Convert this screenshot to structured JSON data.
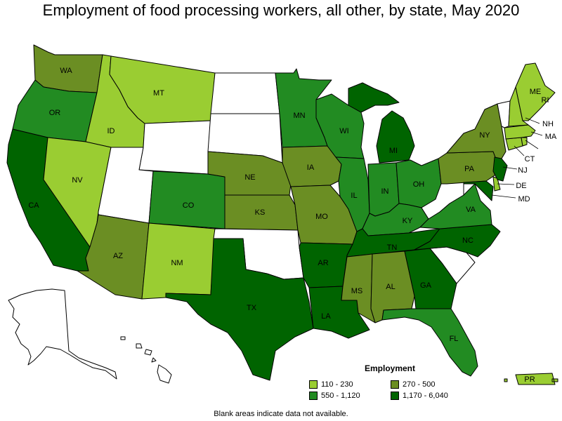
{
  "title": "Employment of food processing workers, all other, by state, May 2020",
  "footnote": "Blank areas indicate data not available.",
  "legend": {
    "title": "Employment",
    "items": [
      {
        "label": "110 - 230",
        "color": "#9acd32"
      },
      {
        "label": "270 - 500",
        "color": "#6b8e23"
      },
      {
        "label": "550 - 1,120",
        "color": "#228b22"
      },
      {
        "label": "1,170 - 6,040",
        "color": "#006400"
      }
    ]
  },
  "colors": {
    "no_data": "#ffffff",
    "c1": "#9acd32",
    "c2": "#6b8e23",
    "c3": "#228b22",
    "c4": "#006400"
  },
  "states": {
    "WA": {
      "label": "WA",
      "class": "c2"
    },
    "OR": {
      "label": "OR",
      "class": "c3"
    },
    "CA": {
      "label": "CA",
      "class": "c4"
    },
    "ID": {
      "label": "ID",
      "class": "c1"
    },
    "NV": {
      "label": "NV",
      "class": "c1"
    },
    "MT": {
      "label": "MT",
      "class": "c1"
    },
    "WY": {
      "label": "",
      "class": "no_data"
    },
    "UT": {
      "label": "",
      "class": "no_data"
    },
    "AZ": {
      "label": "AZ",
      "class": "c2"
    },
    "CO": {
      "label": "CO",
      "class": "c3"
    },
    "NM": {
      "label": "NM",
      "class": "c1"
    },
    "ND": {
      "label": "",
      "class": "no_data"
    },
    "SD": {
      "label": "",
      "class": "no_data"
    },
    "NE": {
      "label": "NE",
      "class": "c2"
    },
    "KS": {
      "label": "KS",
      "class": "c2"
    },
    "OK": {
      "label": "",
      "class": "no_data"
    },
    "TX": {
      "label": "TX",
      "class": "c4"
    },
    "MN": {
      "label": "MN",
      "class": "c3"
    },
    "IA": {
      "label": "IA",
      "class": "c2"
    },
    "MO": {
      "label": "MO",
      "class": "c2"
    },
    "AR": {
      "label": "AR",
      "class": "c4"
    },
    "LA": {
      "label": "LA",
      "class": "c4"
    },
    "WI": {
      "label": "WI",
      "class": "c3"
    },
    "IL": {
      "label": "IL",
      "class": "c3"
    },
    "MI": {
      "label": "MI",
      "class": "c4"
    },
    "IN": {
      "label": "IN",
      "class": "c3"
    },
    "OH": {
      "label": "OH",
      "class": "c3"
    },
    "KY": {
      "label": "KY",
      "class": "c3"
    },
    "TN": {
      "label": "TN",
      "class": "c4"
    },
    "MS": {
      "label": "MS",
      "class": "c2"
    },
    "AL": {
      "label": "AL",
      "class": "c2"
    },
    "GA": {
      "label": "GA",
      "class": "c4"
    },
    "FL": {
      "label": "FL",
      "class": "c3"
    },
    "SC": {
      "label": "",
      "class": "no_data"
    },
    "NC": {
      "label": "NC",
      "class": "c4"
    },
    "VA": {
      "label": "VA",
      "class": "c3"
    },
    "WV": {
      "label": "",
      "class": "no_data"
    },
    "PA": {
      "label": "PA",
      "class": "c2"
    },
    "NY": {
      "label": "NY",
      "class": "c2"
    },
    "VT": {
      "label": "",
      "class": "no_data"
    },
    "NH": {
      "label": "NH",
      "class": "c1"
    },
    "ME": {
      "label": "ME",
      "class": "c1"
    },
    "MA": {
      "label": "MA",
      "class": "c1"
    },
    "RI": {
      "label": "RI",
      "class": "c1"
    },
    "CT": {
      "label": "CT",
      "class": "c1"
    },
    "NJ": {
      "label": "NJ",
      "class": "c4"
    },
    "DE": {
      "label": "DE",
      "class": "c1"
    },
    "MD": {
      "label": "MD",
      "class": "c4"
    },
    "AK": {
      "label": "",
      "class": "no_data"
    },
    "HI": {
      "label": "",
      "class": "no_data"
    },
    "PR": {
      "label": "PR",
      "class": "c1"
    }
  }
}
